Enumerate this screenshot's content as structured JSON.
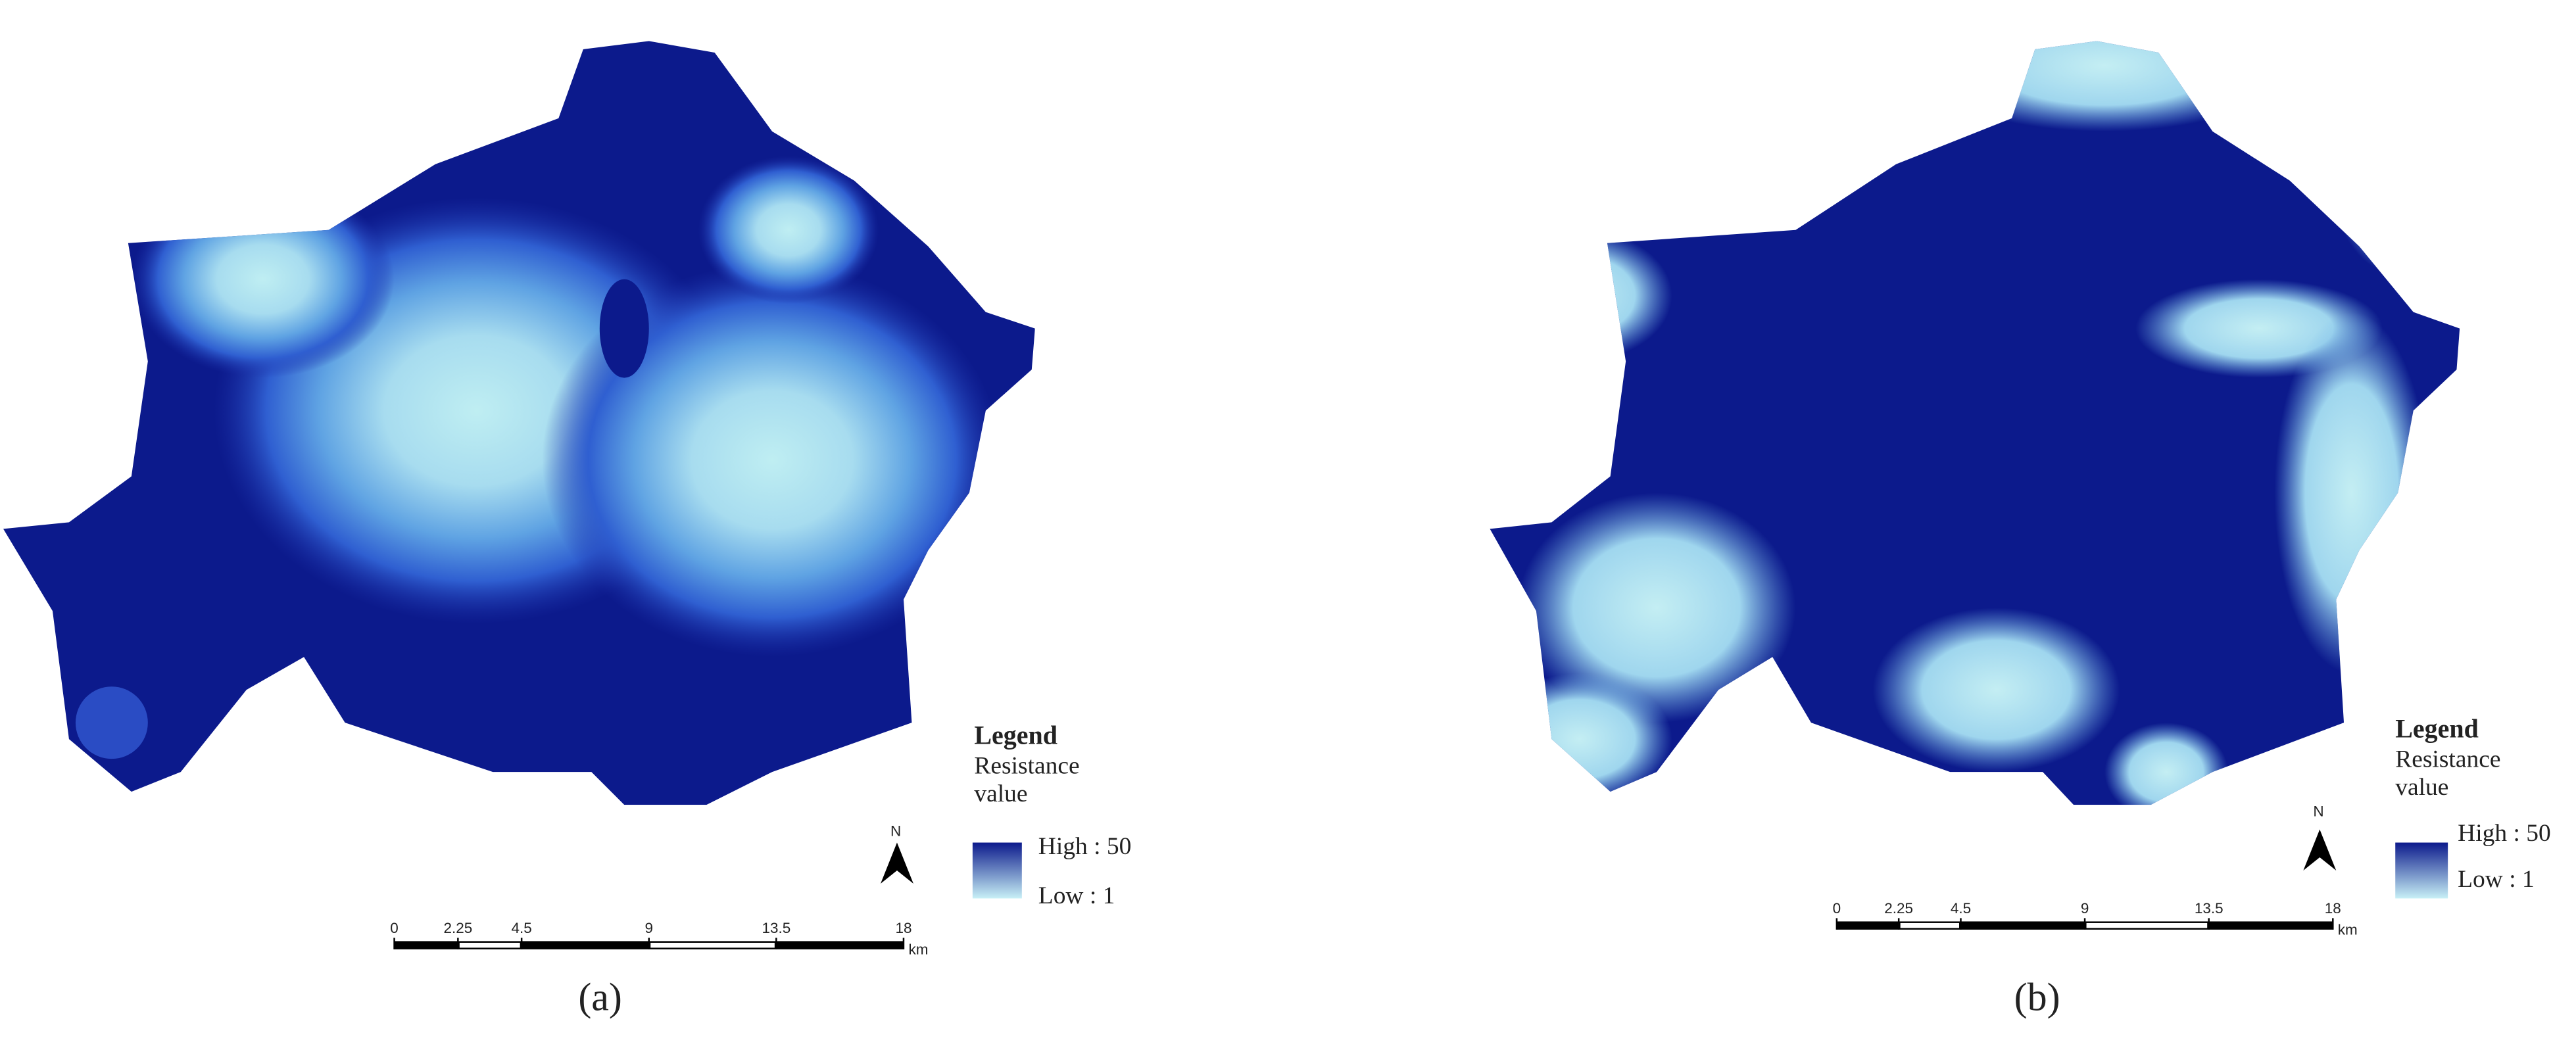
{
  "panels": [
    {
      "caption": "(a)",
      "legend": {
        "title": "Legend",
        "field": "Resistance value",
        "high": "High : 50",
        "low": "Low : 1"
      },
      "north": "N",
      "scale_bar": {
        "ticks": [
          0,
          2.25,
          4.5,
          9,
          13.5,
          18
        ],
        "unit": "km"
      }
    },
    {
      "caption": "(b)",
      "legend": {
        "title": "Legend",
        "field": "Resistance value",
        "high": "High : 50",
        "low": "Low : 1"
      },
      "north": "N",
      "scale_bar": {
        "ticks": [
          0,
          2.25,
          4.5,
          9,
          13.5,
          18
        ],
        "unit": "km"
      }
    }
  ]
}
